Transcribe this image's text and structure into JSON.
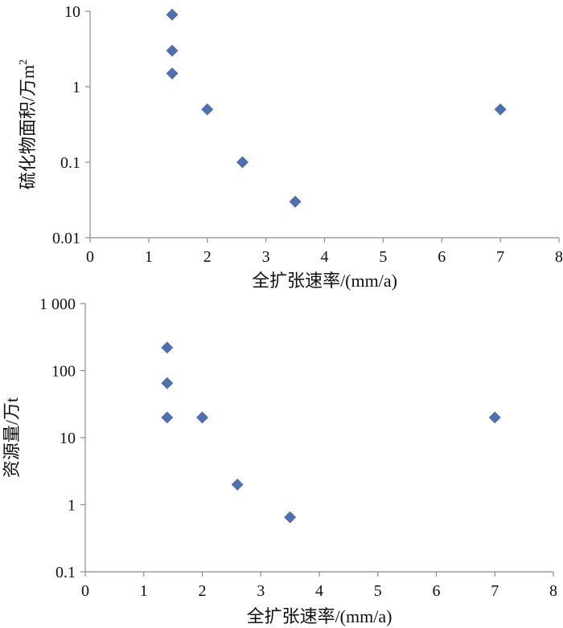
{
  "marker_color": "#4f6faf",
  "axis_color": "#8c8c8c",
  "chart_data": [
    {
      "type": "scatter",
      "scale_y": "log",
      "xlabel": "全扩张速率/(mm/a)",
      "ylabel": "硫化物面积/万m",
      "ylabel_sup": "2",
      "xlim": [
        0,
        8
      ],
      "ylim": [
        0.01,
        10
      ],
      "x_ticks": [
        "0",
        "1",
        "2",
        "3",
        "4",
        "5",
        "6",
        "7",
        "8"
      ],
      "y_ticks": [
        "0.01",
        "0.1",
        "1",
        "10"
      ],
      "y_tick_values": [
        0.01,
        0.1,
        1,
        10
      ],
      "grid": false,
      "points": [
        {
          "x": 1.4,
          "y": 9
        },
        {
          "x": 1.4,
          "y": 3
        },
        {
          "x": 1.4,
          "y": 1.5
        },
        {
          "x": 2.0,
          "y": 0.5
        },
        {
          "x": 2.6,
          "y": 0.1
        },
        {
          "x": 3.5,
          "y": 0.03
        },
        {
          "x": 7.0,
          "y": 0.5
        }
      ]
    },
    {
      "type": "scatter",
      "scale_y": "log",
      "xlabel": "全扩张速率/(mm/a)",
      "ylabel": "资源量/万t",
      "xlim": [
        0,
        8
      ],
      "ylim": [
        0.1,
        1000
      ],
      "x_ticks": [
        "0",
        "1",
        "2",
        "3",
        "4",
        "5",
        "6",
        "7",
        "8"
      ],
      "y_ticks": [
        "0.1",
        "1",
        "10",
        "100",
        "1 000"
      ],
      "y_tick_values": [
        0.1,
        1,
        10,
        100,
        1000
      ],
      "grid": false,
      "points": [
        {
          "x": 1.4,
          "y": 220
        },
        {
          "x": 1.4,
          "y": 65
        },
        {
          "x": 1.4,
          "y": 20
        },
        {
          "x": 2.0,
          "y": 20
        },
        {
          "x": 2.6,
          "y": 2
        },
        {
          "x": 3.5,
          "y": 0.65
        },
        {
          "x": 7.0,
          "y": 20
        }
      ]
    }
  ]
}
